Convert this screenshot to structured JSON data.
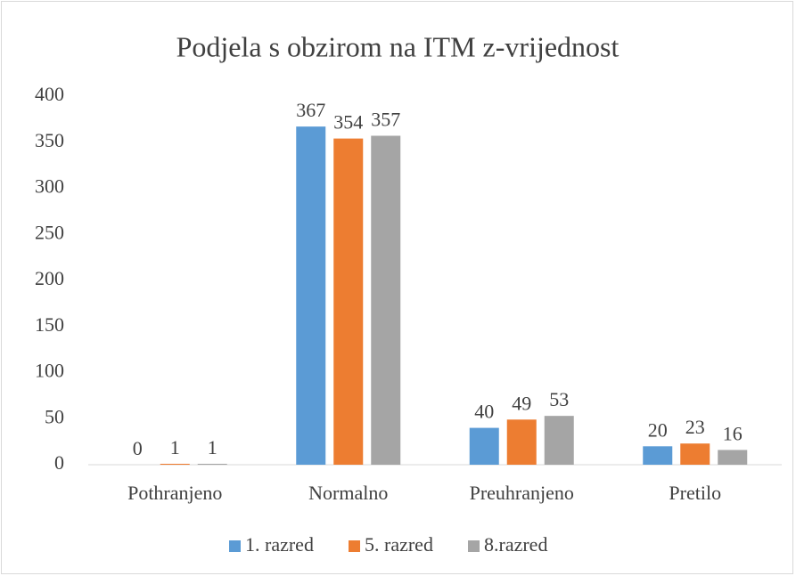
{
  "chart_data": {
    "type": "bar",
    "title": "Podjela s obzirom na ITM z-vrijednost",
    "categories": [
      "Pothranjeno",
      "Normalno",
      "Preuhranjeno",
      "Pretilo"
    ],
    "series": [
      {
        "name": "1. razred",
        "color": "#5b9bd5",
        "values": [
          0,
          367,
          40,
          20
        ]
      },
      {
        "name": "5. razred",
        "color": "#ed7d31",
        "values": [
          1,
          354,
          49,
          23
        ]
      },
      {
        "name": "8.razred",
        "color": "#a5a5a5",
        "values": [
          1,
          357,
          53,
          16
        ]
      }
    ],
    "ylim": [
      0,
      400
    ],
    "yticks": [
      0,
      50,
      100,
      150,
      200,
      250,
      300,
      350,
      400
    ],
    "grid": false,
    "legend": "bottom"
  }
}
